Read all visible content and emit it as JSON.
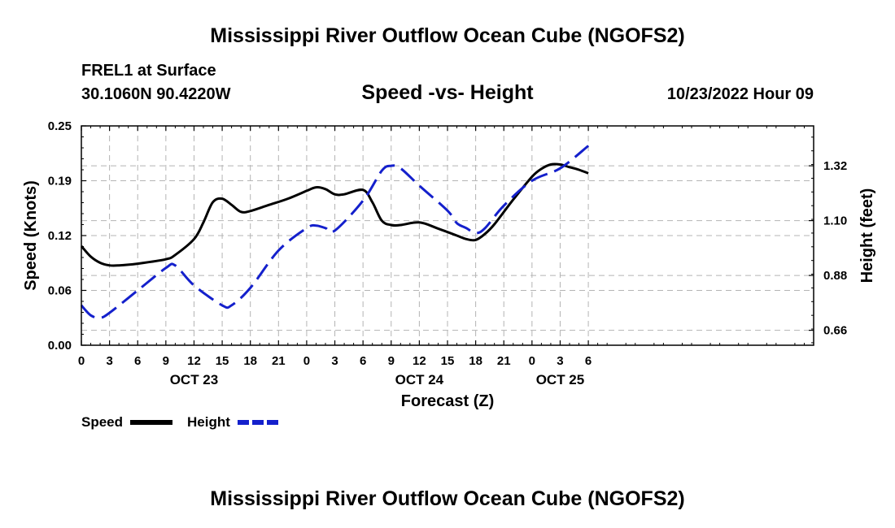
{
  "page": {
    "title_top": "Mississippi River Outflow Ocean Cube (NGOFS2)",
    "station": "FREL1 at Surface",
    "coords": "30.1060N  90.4220W",
    "subtitle": "Speed -vs- Height",
    "datetime": "10/23/2022 Hour 09",
    "title_bottom": "Mississippi River Outflow Ocean Cube (NGOFS2)"
  },
  "chart_data": {
    "type": "line",
    "title": "Speed -vs- Height",
    "xlabel": "Forecast (Z)",
    "ylabel": "Speed (Knots)",
    "y2label": "Height (feet)",
    "x_unit": "hours from 00Z Oct 22",
    "xlim": [
      0,
      78
    ],
    "ylim": [
      0,
      0.25
    ],
    "y2lim": [
      0.6,
      1.48
    ],
    "grid": true,
    "x_ticks": [
      {
        "x": 0,
        "label": "0"
      },
      {
        "x": 3,
        "label": "3"
      },
      {
        "x": 6,
        "label": "6"
      },
      {
        "x": 9,
        "label": "9"
      },
      {
        "x": 12,
        "label": "12"
      },
      {
        "x": 15,
        "label": "15"
      },
      {
        "x": 18,
        "label": "18"
      },
      {
        "x": 21,
        "label": "21"
      },
      {
        "x": 24,
        "label": "0"
      },
      {
        "x": 27,
        "label": "3"
      },
      {
        "x": 30,
        "label": "6"
      },
      {
        "x": 33,
        "label": "9"
      },
      {
        "x": 36,
        "label": "12"
      },
      {
        "x": 39,
        "label": "15"
      },
      {
        "x": 42,
        "label": "18"
      },
      {
        "x": 45,
        "label": "21"
      },
      {
        "x": 48,
        "label": "0"
      },
      {
        "x": 51,
        "label": "3"
      },
      {
        "x": 54,
        "label": "6"
      }
    ],
    "date_labels": [
      {
        "x": 12,
        "label": "OCT 23"
      },
      {
        "x": 36,
        "label": "OCT 24"
      },
      {
        "x": 51,
        "label": "OCT 25"
      }
    ],
    "y_ticks": [
      {
        "value": 0.0,
        "label": "0.00"
      },
      {
        "value": 0.0625,
        "label": "0.06"
      },
      {
        "value": 0.125,
        "label": "0.12"
      },
      {
        "value": 0.1875,
        "label": "0.19"
      },
      {
        "value": 0.25,
        "label": "0.25"
      }
    ],
    "y2_ticks": [
      {
        "value": 0.66,
        "label": "0.66"
      },
      {
        "value": 0.88,
        "label": "0.88"
      },
      {
        "value": 1.1,
        "label": "1.10"
      },
      {
        "value": 1.32,
        "label": "1.32"
      }
    ],
    "series": [
      {
        "name": "Speed",
        "axis": "left",
        "color": "#000000",
        "dash": "solid",
        "x": [
          0,
          1,
          2,
          3,
          4,
          6,
          9,
          10,
          12,
          13,
          14,
          15,
          16,
          17,
          18,
          20,
          22,
          24,
          25,
          26,
          27,
          28,
          30,
          31,
          32,
          33,
          34,
          36,
          38,
          40,
          41,
          42,
          43,
          44,
          46,
          48,
          49,
          50,
          51,
          52,
          53,
          54
        ],
        "values": [
          0.113,
          0.101,
          0.094,
          0.091,
          0.091,
          0.093,
          0.098,
          0.103,
          0.121,
          0.14,
          0.163,
          0.167,
          0.16,
          0.152,
          0.153,
          0.16,
          0.167,
          0.176,
          0.18,
          0.178,
          0.172,
          0.172,
          0.177,
          0.163,
          0.142,
          0.137,
          0.137,
          0.14,
          0.133,
          0.125,
          0.121,
          0.12,
          0.127,
          0.138,
          0.166,
          0.192,
          0.201,
          0.206,
          0.206,
          0.203,
          0.2,
          0.196
        ]
      },
      {
        "name": "Height",
        "axis": "right",
        "color": "#1420cc",
        "dash": "dashed",
        "x": [
          0,
          1,
          2,
          3,
          6,
          9,
          10,
          12,
          15,
          16,
          18,
          21,
          24,
          25,
          26,
          27,
          30,
          32,
          33,
          34,
          36,
          39,
          40,
          41,
          42,
          43,
          45,
          48,
          51,
          54
        ],
        "values": [
          0.76,
          0.72,
          0.71,
          0.73,
          0.82,
          0.91,
          0.92,
          0.84,
          0.76,
          0.76,
          0.83,
          0.98,
          1.07,
          1.08,
          1.07,
          1.06,
          1.18,
          1.3,
          1.32,
          1.31,
          1.24,
          1.14,
          1.09,
          1.07,
          1.05,
          1.07,
          1.16,
          1.26,
          1.31,
          1.4
        ]
      }
    ],
    "legend": {
      "position": "bottom-left",
      "items": [
        {
          "label": "Speed",
          "color": "#000000",
          "dash": "solid"
        },
        {
          "label": "Height",
          "color": "#1420cc",
          "dash": "dashed"
        }
      ]
    }
  }
}
